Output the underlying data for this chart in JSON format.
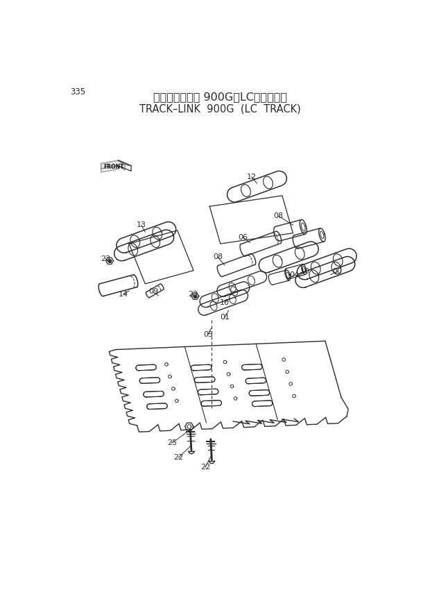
{
  "page_num": "335",
  "title_line1": "トラックリンク 900G（LCトラック）",
  "title_line2": "TRACK–LINK  900G  (LC  TRACK)",
  "bg_color": "#ffffff",
  "line_color": "#2a2a2a"
}
